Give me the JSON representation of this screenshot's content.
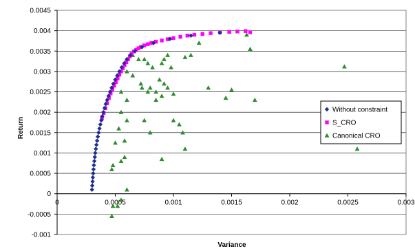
{
  "chart_data": {
    "type": "scatter",
    "title": "",
    "xlabel": "Variance",
    "ylabel": "Return",
    "xlim": [
      0,
      0.003
    ],
    "ylim": [
      -0.001,
      0.0045
    ],
    "x_ticks": [
      "0",
      "0.0005",
      "0.001",
      "0.0015",
      "0.002",
      "0.0025",
      "0.003"
    ],
    "y_ticks": [
      "-0.001",
      "-0.0005",
      "0",
      "0.0005",
      "0.001",
      "0.0015",
      "0.002",
      "0.0025",
      "0.003",
      "0.0035",
      "0.004",
      "0.0045"
    ],
    "grid": "horizontal",
    "legend_position": "right",
    "series": [
      {
        "name": "Without constraint",
        "marker": "diamond",
        "color": "#1f2f8c",
        "points": [
          [
            0.0003,
            0.0001
          ],
          [
            0.000302,
            0.0002
          ],
          [
            0.000305,
            0.0003
          ],
          [
            0.000307,
            0.0004
          ],
          [
            0.00031,
            0.0005
          ],
          [
            0.000313,
            0.0006
          ],
          [
            0.000316,
            0.0007
          ],
          [
            0.00032,
            0.0008
          ],
          [
            0.000324,
            0.0009
          ],
          [
            0.000328,
            0.001
          ],
          [
            0.000333,
            0.0011
          ],
          [
            0.000338,
            0.0012
          ],
          [
            0.000344,
            0.0013
          ],
          [
            0.00035,
            0.0014
          ],
          [
            0.000357,
            0.0015
          ],
          [
            0.000364,
            0.0016
          ],
          [
            0.000372,
            0.0017
          ],
          [
            0.00038,
            0.0018
          ],
          [
            0.000389,
            0.0019
          ],
          [
            0.000398,
            0.002
          ],
          [
            0.000408,
            0.0021
          ],
          [
            0.000418,
            0.0022
          ],
          [
            0.00043,
            0.0023
          ],
          [
            0.000442,
            0.0024
          ],
          [
            0.000455,
            0.0025
          ],
          [
            0.000469,
            0.0026
          ],
          [
            0.000484,
            0.0027
          ],
          [
            0.0005,
            0.0028
          ],
          [
            0.000517,
            0.0029
          ],
          [
            0.000535,
            0.003
          ],
          [
            0.000555,
            0.0031
          ],
          [
            0.000577,
            0.0032
          ],
          [
            0.0006,
            0.0033
          ],
          [
            0.00063,
            0.0034
          ],
          [
            0.00067,
            0.0035
          ],
          [
            0.00073,
            0.0036
          ],
          [
            0.00083,
            0.0037
          ],
          [
            0.00097,
            0.0038
          ],
          [
            0.00115,
            0.00388
          ],
          [
            0.0014,
            0.00395
          ]
        ]
      },
      {
        "name": "S_CRO",
        "marker": "square",
        "color": "#ff00ff",
        "points": [
          [
            0.000385,
            0.00185
          ],
          [
            0.0004,
            0.00198
          ],
          [
            0.000415,
            0.0021
          ],
          [
            0.00043,
            0.00222
          ],
          [
            0.000445,
            0.00235
          ],
          [
            0.00046,
            0.00246
          ],
          [
            0.000475,
            0.00256
          ],
          [
            0.00049,
            0.00265
          ],
          [
            0.000505,
            0.00274
          ],
          [
            0.00052,
            0.00283
          ],
          [
            0.000535,
            0.00292
          ],
          [
            0.00055,
            0.003
          ],
          [
            0.000565,
            0.00308
          ],
          [
            0.00058,
            0.00316
          ],
          [
            0.000595,
            0.00323
          ],
          [
            0.00061,
            0.0033
          ],
          [
            0.000625,
            0.00337
          ],
          [
            0.00064,
            0.00343
          ],
          [
            0.00066,
            0.00349
          ],
          [
            0.00068,
            0.00353
          ],
          [
            0.0007,
            0.00357
          ],
          [
            0.00072,
            0.0036
          ],
          [
            0.00075,
            0.00364
          ],
          [
            0.00078,
            0.00367
          ],
          [
            0.00081,
            0.0037
          ],
          [
            0.00085,
            0.00373
          ],
          [
            0.0009,
            0.00376
          ],
          [
            0.00095,
            0.00379
          ],
          [
            0.001,
            0.00382
          ],
          [
            0.00106,
            0.00385
          ],
          [
            0.00112,
            0.00388
          ],
          [
            0.00118,
            0.0039
          ],
          [
            0.00125,
            0.00392
          ],
          [
            0.00132,
            0.00394
          ],
          [
            0.0014,
            0.00396
          ],
          [
            0.00148,
            0.00397
          ],
          [
            0.00155,
            0.00398
          ],
          [
            0.00162,
            0.00399
          ],
          [
            0.00166,
            0.00396
          ]
        ]
      },
      {
        "name": "Canonical CRO",
        "marker": "triangle",
        "color": "#2e8b2e",
        "points": [
          [
            0.00052,
            -0.0003
          ],
          [
            0.00048,
            -0.0003
          ],
          [
            0.00047,
            -0.00055
          ],
          [
            0.00055,
            -0.00015
          ],
          [
            0.0006,
            0.0001
          ],
          [
            0.00047,
            0.0006
          ],
          [
            0.00048,
            0.0007
          ],
          [
            0.00055,
            0.0008
          ],
          [
            0.00058,
            0.0009
          ],
          [
            0.0005,
            0.00125
          ],
          [
            0.00058,
            0.0013
          ],
          [
            0.00053,
            0.0016
          ],
          [
            0.0006,
            0.0018
          ],
          [
            0.00055,
            0.002
          ],
          [
            0.0006,
            0.0023
          ],
          [
            0.00055,
            0.0025
          ],
          [
            0.00075,
            0.0018
          ],
          [
            0.0008,
            0.0015
          ],
          [
            0.00085,
            0.0023
          ],
          [
            0.0009,
            0.00085
          ],
          [
            0.00072,
            0.0027
          ],
          [
            0.00073,
            0.0026
          ],
          [
            0.00078,
            0.0025
          ],
          [
            0.0008,
            0.0026
          ],
          [
            0.00085,
            0.0025
          ],
          [
            0.0009,
            0.0024
          ],
          [
            0.00092,
            0.0027
          ],
          [
            0.00095,
            0.0026
          ],
          [
            0.00088,
            0.0028
          ],
          [
            0.00082,
            0.0031
          ],
          [
            0.00078,
            0.0032
          ],
          [
            0.00075,
            0.0033
          ],
          [
            0.0007,
            0.0033
          ],
          [
            0.00065,
            0.0034
          ],
          [
            0.0006,
            0.003
          ],
          [
            0.00065,
            0.0029
          ],
          [
            0.0009,
            0.0032
          ],
          [
            0.00092,
            0.0033
          ],
          [
            0.00095,
            0.0034
          ],
          [
            0.00098,
            0.0031
          ],
          [
            0.001,
            0.00245
          ],
          [
            0.001,
            0.0018
          ],
          [
            0.00105,
            0.0017
          ],
          [
            0.00108,
            0.0015
          ],
          [
            0.0011,
            0.0011
          ],
          [
            0.0011,
            0.00335
          ],
          [
            0.00115,
            0.0034
          ],
          [
            0.00122,
            0.0037
          ],
          [
            0.0013,
            0.0026
          ],
          [
            0.00145,
            0.00235
          ],
          [
            0.0015,
            0.00255
          ],
          [
            0.0017,
            0.0023
          ],
          [
            0.00163,
            0.0039
          ],
          [
            0.00166,
            0.00355
          ],
          [
            0.00247,
            0.00312
          ],
          [
            0.00258,
            0.0011
          ]
        ]
      }
    ]
  }
}
